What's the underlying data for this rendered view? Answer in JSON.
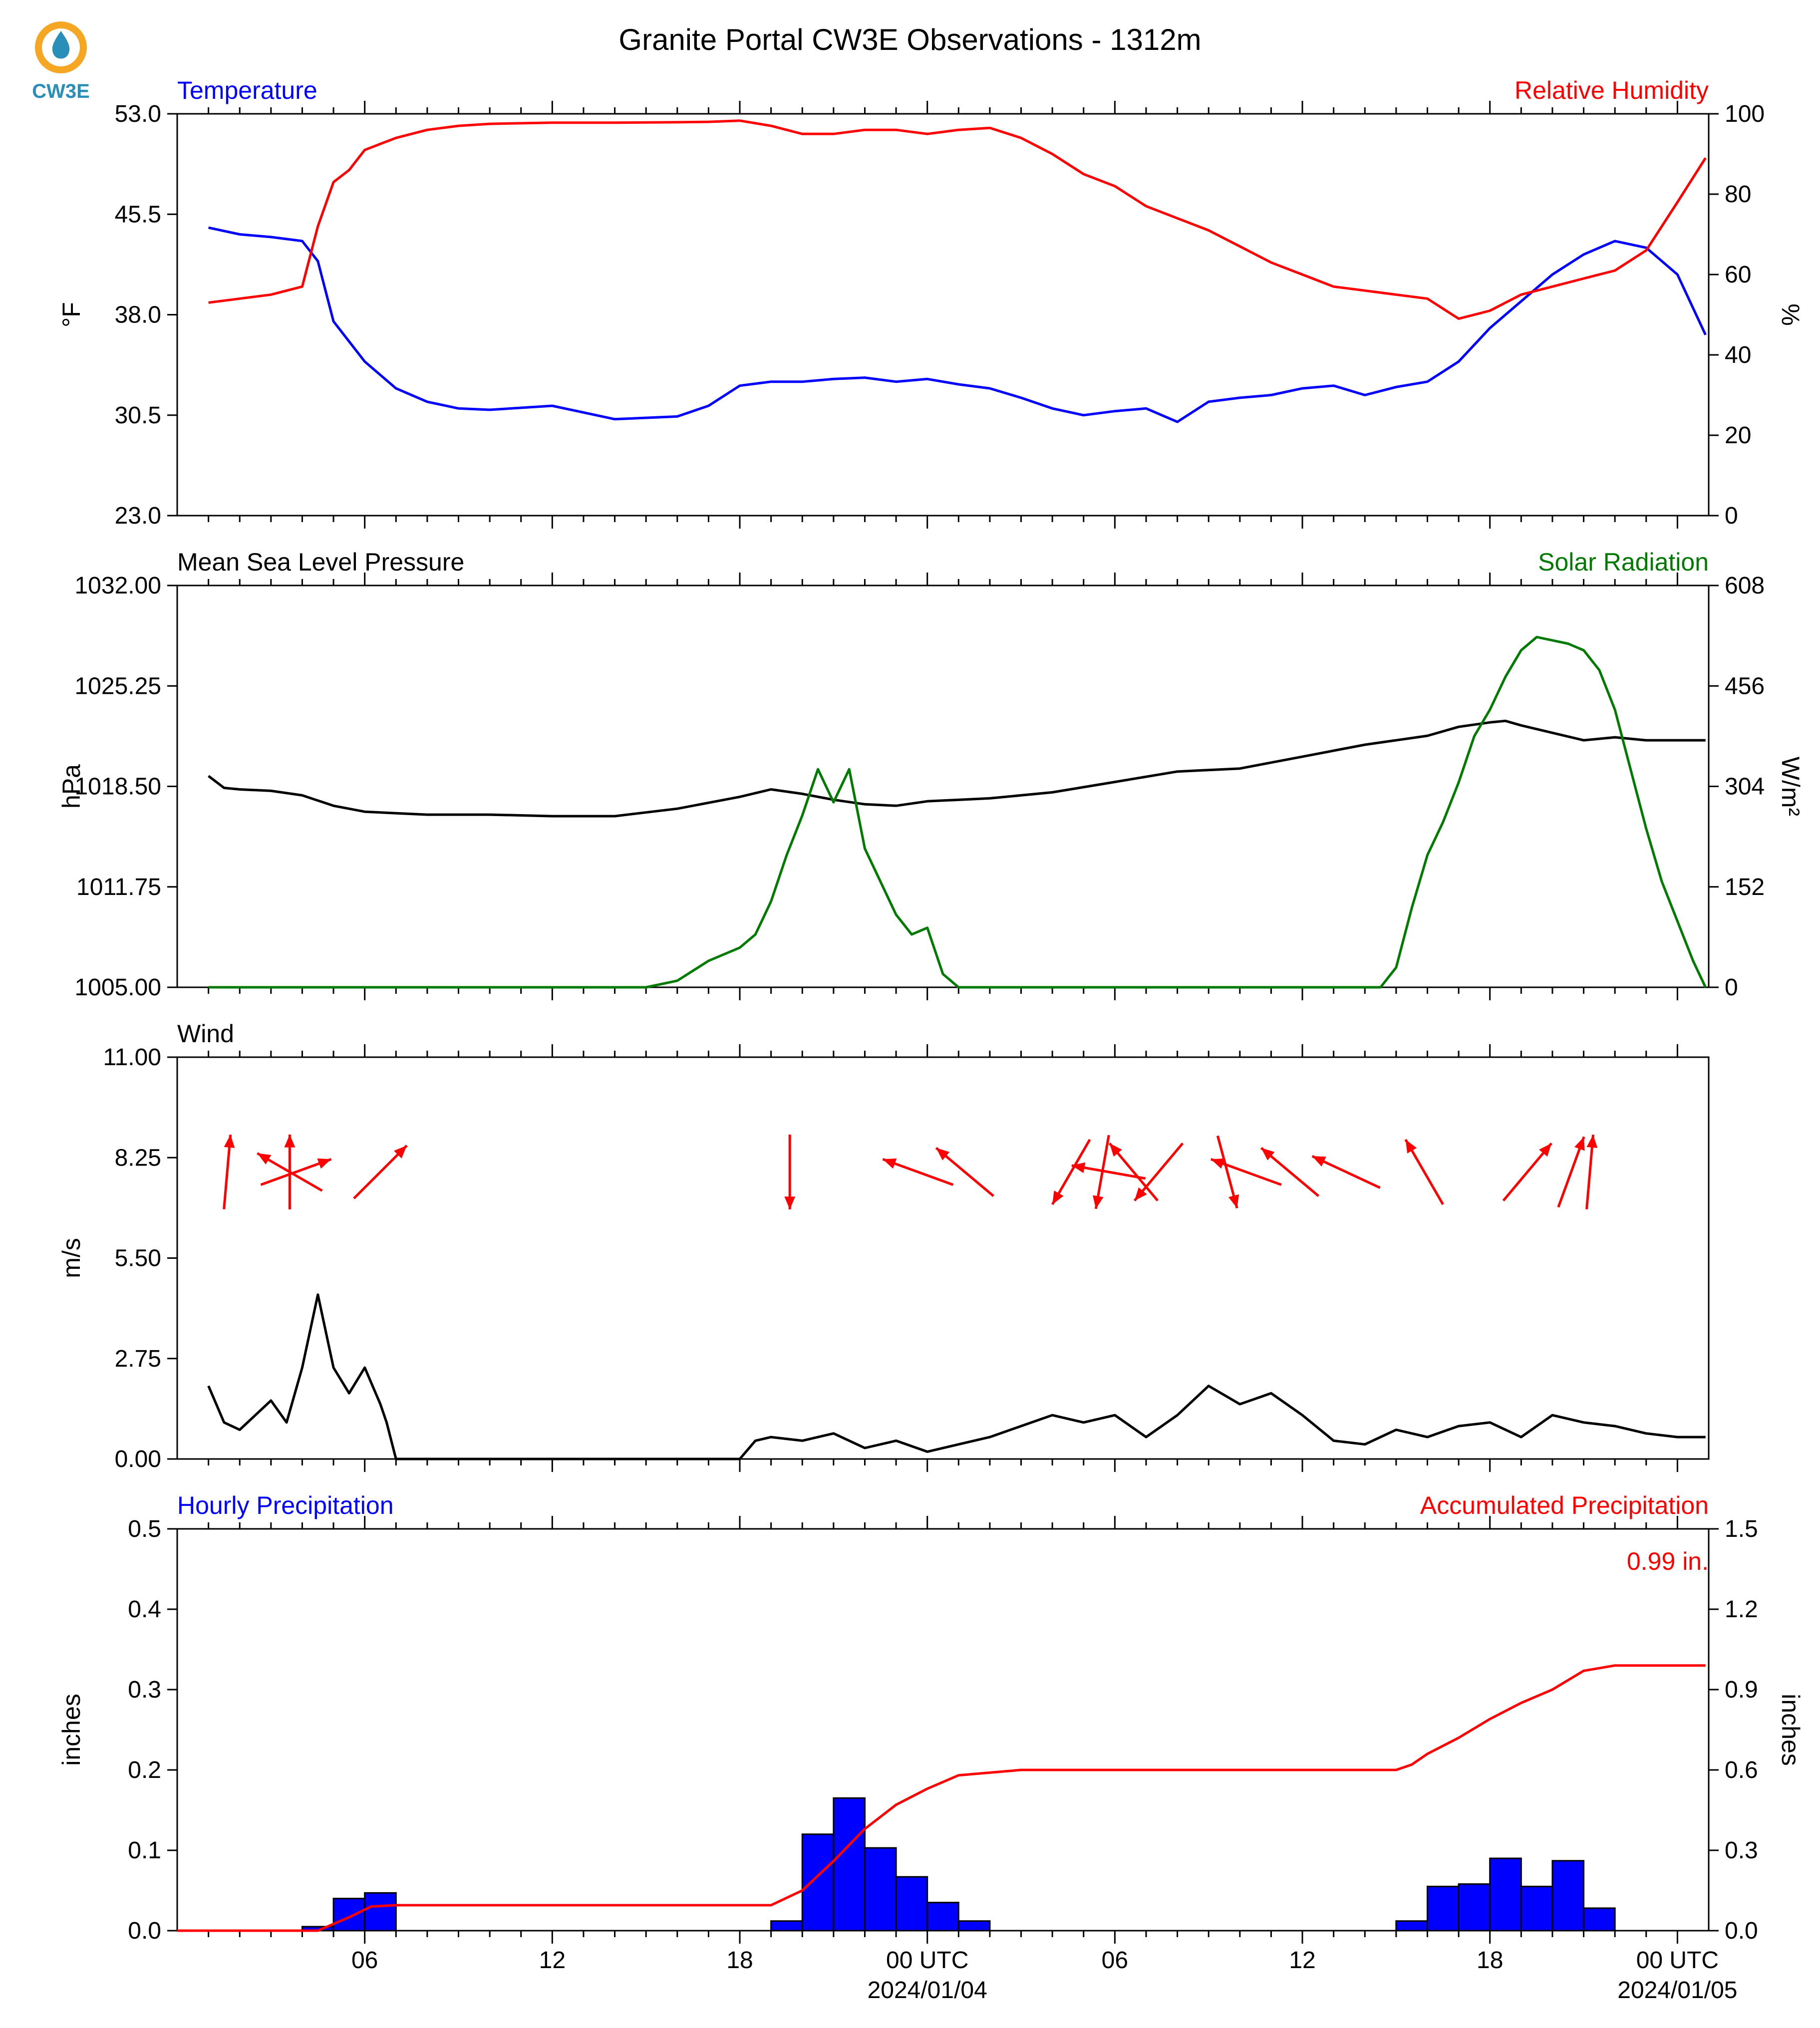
{
  "title": "Granite Portal CW3E Observations - 1312m",
  "logo": {
    "text": "CW3E",
    "colors": {
      "ring": "#f5a623",
      "drop": "#2a8fb8",
      "text": "#2a8fb8"
    }
  },
  "x_axis": {
    "tick_labels": [
      "06",
      "12",
      "18",
      "00 UTC",
      "06",
      "12",
      "18",
      "00 UTC"
    ],
    "date_labels": [
      "2024/01/04",
      "2024/01/05"
    ]
  },
  "chart_data": [
    {
      "id": "temp_rh",
      "type": "line",
      "left_title": "Temperature",
      "right_title": "Relative Humidity",
      "ylabel_left": "°F",
      "ylabel_right": "%",
      "ylim_left": [
        23.0,
        53.0
      ],
      "ylim_right": [
        0,
        100
      ],
      "yticks_left": [
        "53.0",
        "45.5",
        "38.0",
        "30.5",
        "23.0"
      ],
      "yticks_right": [
        "100",
        "80",
        "60",
        "40",
        "20",
        "0"
      ],
      "x_hours": [
        1,
        2,
        3,
        4,
        4.5,
        5,
        5.5,
        6,
        7,
        8,
        9,
        10,
        12,
        14,
        16,
        17,
        18,
        19,
        20,
        21,
        22,
        23,
        24,
        25,
        26,
        27,
        28,
        29,
        30,
        31,
        32,
        33,
        34,
        35,
        36,
        37,
        38,
        39,
        40,
        41,
        42,
        43,
        44,
        45,
        46,
        47,
        48,
        48.9
      ],
      "series": [
        {
          "name": "Temperature",
          "color": "#0000ff",
          "axis": "left",
          "values": [
            44.5,
            44.0,
            43.8,
            43.5,
            42.0,
            37.5,
            36.0,
            34.5,
            32.5,
            31.5,
            31.0,
            30.9,
            31.2,
            30.2,
            30.4,
            31.2,
            32.7,
            33.0,
            33.0,
            33.2,
            33.3,
            33.0,
            33.2,
            32.8,
            32.5,
            31.8,
            31.0,
            30.5,
            30.8,
            31.0,
            30.0,
            31.5,
            31.8,
            32.0,
            32.5,
            32.7,
            32.0,
            32.6,
            33.0,
            34.5,
            37.0,
            39.0,
            41.0,
            42.5,
            43.5,
            43.0,
            41.0,
            36.5
          ]
        },
        {
          "name": "Relative Humidity",
          "color": "#ff0000",
          "axis": "right",
          "values": [
            53,
            54,
            55,
            57,
            72,
            83,
            86,
            91,
            94,
            96,
            97,
            97.5,
            97.8,
            97.8,
            97.9,
            98.0,
            98.3,
            97,
            95,
            95,
            96,
            96,
            95,
            96,
            96.5,
            94,
            90,
            85,
            82,
            77,
            74,
            71,
            67,
            63,
            60,
            57,
            56,
            55,
            54,
            49,
            51,
            55,
            57,
            59,
            61,
            66,
            78,
            89
          ]
        }
      ]
    },
    {
      "id": "pressure_solar",
      "type": "line",
      "left_title": "Mean Sea Level Pressure",
      "right_title": "Solar Radiation",
      "ylabel_left": "hPa",
      "ylabel_right": "W/m²",
      "ylim_left": [
        1005.0,
        1032.0
      ],
      "ylim_right": [
        0,
        608
      ],
      "yticks_left": [
        "1032.00",
        "1025.25",
        "1018.50",
        "1011.75",
        "1005.00"
      ],
      "yticks_right": [
        "608",
        "456",
        "304",
        "152",
        "0"
      ],
      "series": [
        {
          "name": "Mean Sea Level Pressure",
          "color": "#000000",
          "axis": "left",
          "x": [
            1,
            1.5,
            2,
            3,
            4,
            5,
            6,
            7,
            8,
            9,
            10,
            12,
            14,
            16,
            18,
            19,
            20,
            21,
            22,
            23,
            24,
            26,
            28,
            30,
            32,
            34,
            36,
            38,
            40,
            41,
            42,
            42.5,
            43,
            44,
            45,
            46,
            47,
            48,
            48.9
          ],
          "values": [
            1019.2,
            1018.4,
            1018.3,
            1018.2,
            1017.9,
            1017.2,
            1016.8,
            1016.7,
            1016.6,
            1016.6,
            1016.6,
            1016.5,
            1016.5,
            1017.0,
            1017.8,
            1018.3,
            1018.0,
            1017.6,
            1017.3,
            1017.2,
            1017.5,
            1017.7,
            1018.1,
            1018.8,
            1019.5,
            1019.7,
            1020.5,
            1021.3,
            1021.9,
            1022.5,
            1022.8,
            1022.9,
            1022.6,
            1022.1,
            1021.6,
            1021.8,
            1021.6,
            1021.6,
            1021.6
          ]
        },
        {
          "name": "Solar Radiation",
          "color": "#007a00",
          "axis": "right",
          "x": [
            1,
            15,
            16,
            17,
            18,
            18.5,
            19,
            19.5,
            20,
            20.5,
            21,
            21.5,
            22,
            22.5,
            23,
            23.5,
            24,
            24.5,
            25,
            38.5,
            39,
            39.5,
            40,
            40.5,
            41,
            41.5,
            42,
            42.5,
            43,
            43.5,
            44,
            44.5,
            45,
            45.5,
            46,
            46.5,
            47,
            47.5,
            48,
            48.5,
            48.9
          ],
          "values": [
            0,
            0,
            10,
            40,
            60,
            80,
            130,
            200,
            260,
            330,
            280,
            330,
            210,
            160,
            110,
            80,
            90,
            20,
            0,
            0,
            30,
            120,
            200,
            250,
            310,
            380,
            420,
            470,
            510,
            530,
            525,
            520,
            510,
            480,
            420,
            330,
            240,
            160,
            100,
            40,
            0
          ]
        }
      ]
    },
    {
      "id": "wind",
      "type": "line",
      "left_title": "Wind",
      "ylabel_left": "m/s",
      "ylim_left": [
        0.0,
        11.0
      ],
      "yticks_left": [
        "11.00",
        "8.25",
        "5.50",
        "2.75",
        "0.00"
      ],
      "series": [
        {
          "name": "Wind",
          "color": "#000000",
          "axis": "left",
          "x": [
            1,
            1.5,
            2,
            2.5,
            3,
            3.5,
            4,
            4.5,
            5,
            5.5,
            6,
            6.5,
            6.7,
            7,
            18,
            18.5,
            19,
            20,
            21,
            22,
            23,
            24,
            25,
            26,
            27,
            28,
            29,
            30,
            31,
            32,
            33,
            34,
            35,
            36,
            37,
            38,
            39,
            40,
            41,
            42,
            43,
            44,
            45,
            46,
            47,
            48,
            48.9
          ],
          "values": [
            2.0,
            1.0,
            0.8,
            1.2,
            1.6,
            1.0,
            2.5,
            4.5,
            2.5,
            1.8,
            2.5,
            1.5,
            1.0,
            0.0,
            0.0,
            0.5,
            0.6,
            0.5,
            0.7,
            0.3,
            0.5,
            0.2,
            0.4,
            0.6,
            0.9,
            1.2,
            1.0,
            1.2,
            0.6,
            1.2,
            2.0,
            1.5,
            1.8,
            1.2,
            0.5,
            0.4,
            0.8,
            0.6,
            0.9,
            1.0,
            0.6,
            1.2,
            1.0,
            0.9,
            0.7,
            0.6,
            0.6
          ]
        },
        {
          "name": "wind-direction-arrows",
          "color": "#ff0000",
          "arrows": [
            {
              "hour": 1.6,
              "direction_deg": 5
            },
            {
              "hour": 3.6,
              "direction_deg": 0
            },
            {
              "hour": 3.6,
              "direction_deg": 300
            },
            {
              "hour": 3.8,
              "direction_deg": 70
            },
            {
              "hour": 6.5,
              "direction_deg": 45
            },
            {
              "hour": 19.6,
              "direction_deg": 180
            },
            {
              "hour": 23.7,
              "direction_deg": 290
            },
            {
              "hour": 25.2,
              "direction_deg": 310
            },
            {
              "hour": 28.6,
              "direction_deg": 210
            },
            {
              "hour": 29.6,
              "direction_deg": 190
            },
            {
              "hour": 29.8,
              "direction_deg": 280
            },
            {
              "hour": 30.6,
              "direction_deg": 320
            },
            {
              "hour": 31.4,
              "direction_deg": 220
            },
            {
              "hour": 33.6,
              "direction_deg": 165
            },
            {
              "hour": 34.2,
              "direction_deg": 290
            },
            {
              "hour": 35.6,
              "direction_deg": 310
            },
            {
              "hour": 37.4,
              "direction_deg": 295
            },
            {
              "hour": 39.9,
              "direction_deg": 330
            },
            {
              "hour": 43.2,
              "direction_deg": 40
            },
            {
              "hour": 44.6,
              "direction_deg": 20
            },
            {
              "hour": 45.2,
              "direction_deg": 5
            }
          ]
        }
      ]
    },
    {
      "id": "precip",
      "type": "bar",
      "left_title": "Hourly Precipitation",
      "right_title": "Accumulated Precipitation",
      "annotation": "0.99 in.",
      "ylabel_left": "inches",
      "ylabel_right": "inches",
      "ylim_left": [
        0.0,
        0.5
      ],
      "ylim_right": [
        0.0,
        1.5
      ],
      "yticks_left": [
        "0.5",
        "0.4",
        "0.3",
        "0.2",
        "0.1",
        "0.0"
      ],
      "yticks_right": [
        "1.5",
        "1.2",
        "0.9",
        "0.6",
        "0.3",
        "0.0"
      ],
      "hourly": {
        "start_hours": [
          4,
          5,
          6,
          19,
          20,
          21,
          22,
          23,
          24,
          25,
          26,
          39,
          40,
          41,
          42,
          43,
          44,
          45
        ],
        "values": [
          0.005,
          0.04,
          0.047,
          0.012,
          0.12,
          0.165,
          0.103,
          0.067,
          0.035,
          0.012,
          0.0,
          0.012,
          0.055,
          0.058,
          0.09,
          0.055,
          0.087,
          0.028
        ],
        "color": "#0000ff"
      },
      "accumulated": {
        "x": [
          0,
          4.5,
          5.5,
          6.2,
          7,
          19,
          20,
          21,
          22,
          23,
          24,
          25,
          26,
          27,
          28,
          39,
          39.5,
          40,
          41,
          42,
          43,
          44,
          45,
          46,
          47,
          48,
          48.9
        ],
        "values": [
          0,
          0,
          0.05,
          0.09,
          0.095,
          0.095,
          0.15,
          0.26,
          0.38,
          0.47,
          0.53,
          0.58,
          0.59,
          0.6,
          0.6,
          0.6,
          0.62,
          0.66,
          0.72,
          0.79,
          0.85,
          0.9,
          0.97,
          0.99,
          0.99,
          0.99,
          0.99
        ],
        "color": "#ff0000"
      }
    }
  ]
}
